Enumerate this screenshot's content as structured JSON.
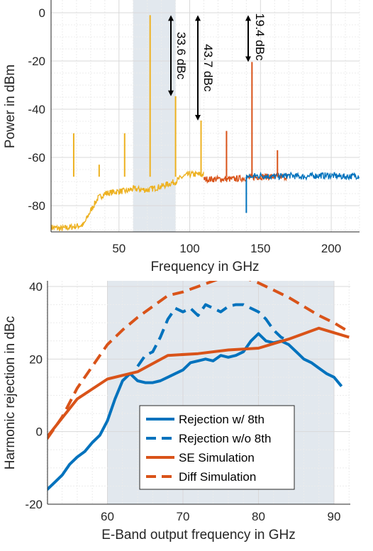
{
  "chart_data": [
    {
      "type": "line",
      "xlabel": "Frequency in GHz",
      "ylabel": "Power in dBm",
      "xlim": [
        2,
        220
      ],
      "ylim": [
        -90,
        3
      ],
      "xticks": [
        "50",
        "100",
        "150",
        "200"
      ],
      "yticks": [
        "0",
        "-20",
        "-40",
        "-60",
        "-80"
      ],
      "grid": true,
      "shaded_band_x": [
        60,
        90
      ],
      "colors": {
        "segment_1": "#EDB120",
        "segment_2": "#D95319",
        "segment_3": "#0072BD",
        "highlight": "#E2E8EE"
      },
      "noise_floor": [
        {
          "x": [
            2,
            10,
            20,
            25,
            30,
            35,
            40,
            50,
            55,
            60,
            70,
            80,
            90,
            95,
            100,
            110
          ],
          "y": [
            -89,
            -89.5,
            -88.5,
            -88,
            -82,
            -77,
            -75,
            -74,
            -74,
            -73,
            -73.5,
            -72,
            -70,
            -68,
            -67,
            -67
          ]
        },
        {
          "x": [
            110,
            120,
            130,
            140,
            150,
            160,
            170
          ],
          "y": [
            -69,
            -69,
            -69,
            -68.5,
            -68,
            -68,
            -68
          ]
        },
        {
          "x": [
            140,
            150,
            160,
            170,
            180,
            190,
            200,
            210,
            220
          ],
          "y": [
            -68,
            -67.5,
            -68,
            -67.5,
            -68,
            -67.5,
            -67.5,
            -68,
            -67.5
          ]
        }
      ],
      "spurs": [
        {
          "x": 18,
          "y": -50,
          "seg": 1
        },
        {
          "x": 36,
          "y": -63,
          "seg": 1
        },
        {
          "x": 54,
          "y": -50,
          "seg": 1
        },
        {
          "x": 72,
          "y": -1,
          "seg": 1
        },
        {
          "x": 90,
          "y": -34.6,
          "seg": 1
        },
        {
          "x": 108,
          "y": -44.7,
          "seg": 1
        },
        {
          "x": 126,
          "y": -49,
          "seg": 2
        },
        {
          "x": 144,
          "y": -20.4,
          "seg": 2
        },
        {
          "x": 162,
          "y": -57,
          "seg": 2
        },
        {
          "x": 140,
          "y": -83,
          "seg": 3
        }
      ],
      "annotations": [
        {
          "label": "33.6 dBc",
          "x": 90,
          "y_top": -1,
          "y_bottom": -34.6
        },
        {
          "label": "43.7 dBc",
          "x": 108,
          "y_top": -1,
          "y_bottom": -44.7
        },
        {
          "label": "19.4 dBc",
          "x": 144,
          "y_top": -1,
          "y_bottom": -20.4
        }
      ]
    },
    {
      "type": "line",
      "xlabel": "E-Band output frequency in GHz",
      "ylabel": "Harmonic rejection in dBc",
      "xlim": [
        52,
        92
      ],
      "ylim": [
        -20,
        42
      ],
      "xticks": [
        "60",
        "70",
        "80",
        "90"
      ],
      "yticks": [
        "40",
        "20",
        "0",
        "-20"
      ],
      "grid": true,
      "shaded_band_x": [
        60,
        90
      ],
      "legend_position": "bottom-center",
      "series": [
        {
          "name": "Rejection w/ 8th",
          "style": "solid",
          "color": "#0072BD",
          "x": [
            52,
            53,
            54,
            55,
            56,
            57,
            58,
            59,
            60,
            61,
            62,
            63,
            64,
            65,
            66,
            67,
            68,
            69,
            70,
            71,
            72,
            73,
            74,
            75,
            76,
            77,
            78,
            79,
            80,
            81,
            82,
            83,
            84,
            85,
            86,
            87,
            88,
            89,
            90,
            91
          ],
          "y": [
            -16,
            -14,
            -12,
            -9,
            -7,
            -5.5,
            -3,
            -1,
            3,
            9,
            14,
            16,
            14,
            13.5,
            13.5,
            14,
            15,
            16,
            17,
            19,
            19.5,
            20,
            19.5,
            21,
            20.5,
            21,
            22,
            25,
            27,
            25,
            24.5,
            25,
            24,
            22,
            20,
            19,
            17.5,
            16,
            15,
            12.5
          ]
        },
        {
          "name": "Rejection w/o 8th",
          "style": "dashed",
          "color": "#0072BD",
          "x": [
            64,
            65,
            66,
            67,
            68,
            69,
            70,
            71,
            72,
            73,
            74,
            75,
            76,
            77,
            78,
            79,
            80,
            81,
            82,
            83,
            84
          ],
          "y": [
            18,
            21,
            22,
            26,
            31,
            34,
            33,
            34,
            32,
            35,
            34,
            33,
            34.5,
            35,
            35,
            34,
            33,
            31,
            28,
            26,
            25
          ]
        },
        {
          "name": "SE Simulation",
          "style": "solid",
          "color": "#D95319",
          "x": [
            52,
            56,
            60,
            64,
            68,
            72,
            76,
            80,
            84,
            88,
            92
          ],
          "y": [
            -1.5,
            9,
            14.5,
            16.5,
            21,
            21.5,
            22.5,
            23,
            25.5,
            28.5,
            26
          ]
        },
        {
          "name": "Diff Simulation",
          "style": "dashed",
          "color": "#D95319",
          "x": [
            52,
            54,
            56,
            58,
            60,
            62,
            64,
            66,
            68,
            70,
            72,
            74,
            76,
            78,
            80,
            82,
            84,
            86,
            88,
            90,
            92
          ],
          "y": [
            -2,
            4,
            12,
            18,
            24,
            28,
            31.5,
            34.5,
            37.5,
            38.5,
            40,
            41.5,
            43,
            42.5,
            41,
            39,
            37,
            34.5,
            32,
            30,
            27.5
          ]
        }
      ]
    }
  ]
}
